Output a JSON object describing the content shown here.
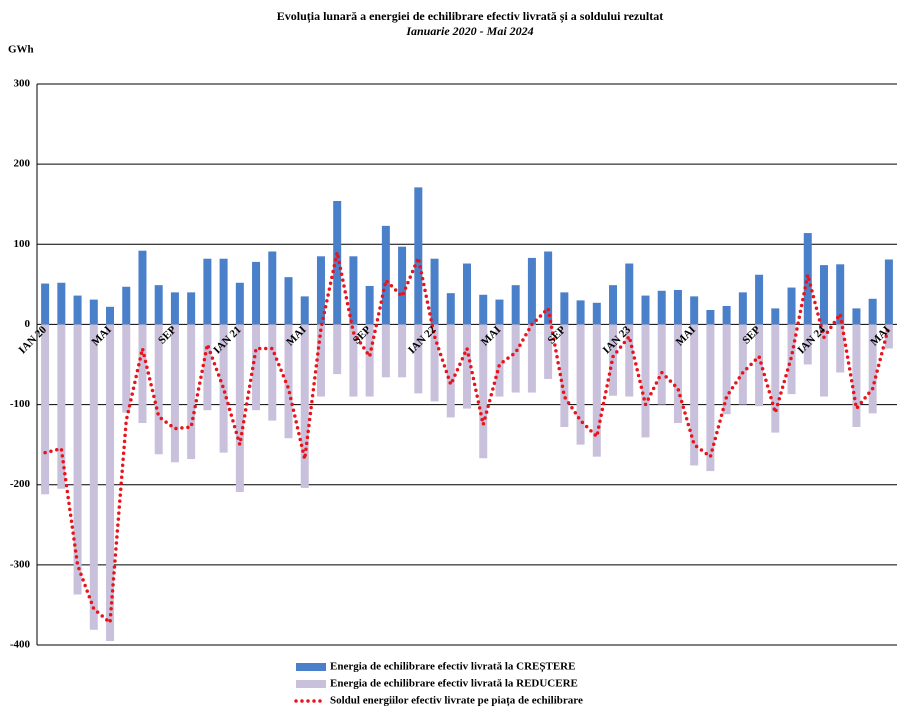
{
  "chart_data": {
    "type": "bar_line",
    "title": "Evoluția lunară a energiei de echilibrare efectiv livrată și a soldului rezultat",
    "subtitle": "Ianuarie 2020 - Mai 2024",
    "y_label": "GWh",
    "categories": [
      "IAN 20",
      null,
      null,
      null,
      "MAI",
      null,
      null,
      null,
      "SEP",
      null,
      null,
      null,
      "IAN 21",
      null,
      null,
      null,
      "MAI",
      null,
      null,
      null,
      "SEP",
      null,
      null,
      null,
      "IAN 22",
      null,
      null,
      null,
      "MAI",
      null,
      null,
      null,
      "SEP",
      null,
      null,
      null,
      "IAN 23",
      null,
      null,
      null,
      "MAI",
      null,
      null,
      null,
      "SEP",
      null,
      null,
      null,
      "IAN 24",
      null,
      null,
      null,
      "MAI"
    ],
    "series": [
      {
        "name": "Energia de echilibrare efectiv livrată la CREȘTERE",
        "kind": "bar",
        "color": "#4a7fc9",
        "values": [
          51,
          52,
          36,
          31,
          22,
          47,
          92,
          49,
          40,
          40,
          82,
          82,
          52,
          78,
          91,
          59,
          35,
          85,
          154,
          85,
          48,
          123,
          97,
          171,
          82,
          39,
          76,
          37,
          31,
          49,
          83,
          91,
          40,
          30,
          27,
          49,
          76,
          36,
          42,
          43,
          35,
          18,
          23,
          40,
          62,
          20,
          46,
          114,
          74,
          75,
          20,
          32,
          81
        ]
      },
      {
        "name": "Energia de echilibrare efectiv livrată la REDUCERE",
        "kind": "bar",
        "color": "#c9c0dc",
        "values": [
          -212,
          -205,
          -337,
          -381,
          -395,
          -110,
          -123,
          -162,
          -172,
          -168,
          -107,
          -160,
          -209,
          -107,
          -120,
          -142,
          -204,
          -90,
          -62,
          -90,
          -90,
          -66,
          -66,
          -86,
          -96,
          -116,
          -105,
          -167,
          -90,
          -85,
          -85,
          -68,
          -128,
          -150,
          -165,
          -89,
          -90,
          -141,
          -100,
          -123,
          -176,
          -183,
          -112,
          -100,
          -102,
          -135,
          -87,
          -50,
          -90,
          -60,
          -128,
          -111,
          -30
        ]
      },
      {
        "name": "Soldul energiilor efectiv livrate pe piața de echilibrare",
        "kind": "line",
        "color": "#e8141b",
        "values": [
          -160,
          -155,
          -300,
          -355,
          -372,
          -120,
          -30,
          -115,
          -130,
          -128,
          -25,
          -80,
          -150,
          -30,
          -30,
          -80,
          -168,
          -5,
          90,
          -10,
          -40,
          55,
          35,
          83,
          -15,
          -75,
          -30,
          -125,
          -50,
          -35,
          0,
          20,
          -90,
          -120,
          -140,
          -40,
          -15,
          -100,
          -60,
          -80,
          -150,
          -165,
          -90,
          -60,
          -40,
          -110,
          -40,
          62,
          -16,
          13,
          -105,
          -80,
          -2
        ]
      }
    ],
    "ylim": [
      -400,
      300
    ],
    "yticks": [
      -400,
      -300,
      -200,
      -100,
      0,
      100,
      200,
      300
    ],
    "grid": true
  }
}
